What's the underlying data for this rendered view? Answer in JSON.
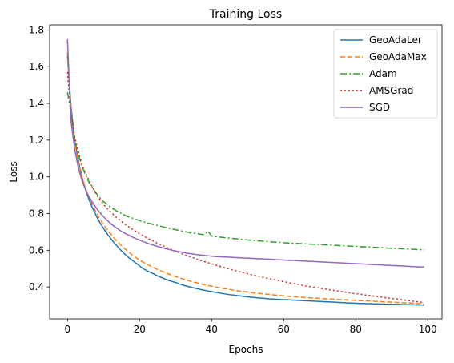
{
  "chart_data": {
    "type": "line",
    "title": "Training Loss",
    "xlabel": "Epochs",
    "ylabel": "Loss",
    "xlim": [
      -4.95,
      103.95
    ],
    "ylim": [
      0.226,
      1.828
    ],
    "xticks": [
      0,
      20,
      40,
      60,
      80,
      100
    ],
    "yticks": [
      0.4,
      0.6,
      0.8,
      1.0,
      1.2,
      1.4,
      1.6,
      1.8
    ],
    "ytick_labels": [
      "0.4",
      "0.6",
      "0.8",
      "1.0",
      "1.2",
      "1.4",
      "1.6",
      "1.8"
    ],
    "legend_position": "top-right",
    "grid": false,
    "x": [
      0,
      1,
      2,
      3,
      4,
      5,
      6,
      7,
      8,
      9,
      10,
      11,
      12,
      13,
      14,
      15,
      16,
      17,
      18,
      19,
      20,
      21,
      22,
      23,
      24,
      25,
      26,
      27,
      28,
      29,
      30,
      31,
      32,
      33,
      34,
      35,
      36,
      37,
      38,
      39,
      40,
      41,
      42,
      43,
      44,
      45,
      46,
      47,
      48,
      49,
      50,
      51,
      52,
      53,
      54,
      55,
      56,
      57,
      58,
      59,
      60,
      61,
      62,
      63,
      64,
      65,
      66,
      67,
      68,
      69,
      70,
      71,
      72,
      73,
      74,
      75,
      76,
      77,
      78,
      79,
      80,
      81,
      82,
      83,
      84,
      85,
      86,
      87,
      88,
      89,
      90,
      91,
      92,
      93,
      94,
      95,
      96,
      97,
      98,
      99
    ],
    "series": [
      {
        "name": "GeoAdaLer",
        "color": "#1f77b4",
        "dash": "",
        "values": [
          1.66,
          1.38,
          1.2,
          1.09,
          1.0,
          0.93,
          0.875,
          0.828,
          0.787,
          0.75,
          0.72,
          0.69,
          0.664,
          0.64,
          0.617,
          0.596,
          0.577,
          0.56,
          0.545,
          0.53,
          0.515,
          0.5,
          0.489,
          0.48,
          0.47,
          0.46,
          0.452,
          0.444,
          0.436,
          0.43,
          0.424,
          0.417,
          0.41,
          0.405,
          0.4,
          0.395,
          0.39,
          0.386,
          0.382,
          0.378,
          0.375,
          0.371,
          0.368,
          0.364,
          0.361,
          0.358,
          0.356,
          0.353,
          0.351,
          0.348,
          0.346,
          0.344,
          0.342,
          0.34,
          0.339,
          0.337,
          0.335,
          0.334,
          0.333,
          0.332,
          0.331,
          0.33,
          0.329,
          0.328,
          0.327,
          0.326,
          0.325,
          0.324,
          0.323,
          0.322,
          0.321,
          0.32,
          0.319,
          0.318,
          0.317,
          0.316,
          0.315,
          0.314,
          0.313,
          0.312,
          0.311,
          0.31,
          0.31,
          0.309,
          0.309,
          0.308,
          0.308,
          0.307,
          0.307,
          0.306,
          0.306,
          0.305,
          0.305,
          0.304,
          0.304,
          0.303,
          0.303,
          0.302,
          0.302,
          0.301
        ]
      },
      {
        "name": "GeoAdaMax",
        "color": "#ff7f0e",
        "dash": "6,3",
        "values": [
          1.68,
          1.36,
          1.19,
          1.08,
          1.0,
          0.94,
          0.89,
          0.845,
          0.805,
          0.77,
          0.74,
          0.712,
          0.688,
          0.665,
          0.645,
          0.625,
          0.607,
          0.59,
          0.574,
          0.56,
          0.547,
          0.535,
          0.524,
          0.514,
          0.504,
          0.495,
          0.487,
          0.479,
          0.471,
          0.464,
          0.457,
          0.45,
          0.444,
          0.438,
          0.432,
          0.427,
          0.422,
          0.417,
          0.412,
          0.408,
          0.404,
          0.4,
          0.396,
          0.393,
          0.39,
          0.386,
          0.383,
          0.38,
          0.377,
          0.375,
          0.372,
          0.37,
          0.367,
          0.365,
          0.363,
          0.361,
          0.359,
          0.357,
          0.355,
          0.353,
          0.352,
          0.35,
          0.348,
          0.347,
          0.345,
          0.344,
          0.343,
          0.341,
          0.34,
          0.339,
          0.338,
          0.336,
          0.335,
          0.334,
          0.333,
          0.332,
          0.331,
          0.33,
          0.329,
          0.328,
          0.327,
          0.326,
          0.325,
          0.324,
          0.323,
          0.322,
          0.321,
          0.32,
          0.319,
          0.318,
          0.317,
          0.316,
          0.315,
          0.314,
          0.313,
          0.312,
          0.311,
          0.31,
          0.309,
          0.308
        ]
      },
      {
        "name": "Adam",
        "color": "#2ca02c",
        "dash": "8,3,2,3",
        "values": [
          1.46,
          1.35,
          1.2,
          1.12,
          1.06,
          1.01,
          0.97,
          0.94,
          0.91,
          0.885,
          0.865,
          0.85,
          0.835,
          0.822,
          0.81,
          0.8,
          0.79,
          0.782,
          0.775,
          0.768,
          0.762,
          0.756,
          0.75,
          0.745,
          0.74,
          0.735,
          0.73,
          0.725,
          0.72,
          0.716,
          0.712,
          0.708,
          0.704,
          0.7,
          0.696,
          0.693,
          0.69,
          0.687,
          0.684,
          0.704,
          0.678,
          0.675,
          0.672,
          0.67,
          0.668,
          0.666,
          0.664,
          0.662,
          0.66,
          0.658,
          0.656,
          0.655,
          0.653,
          0.651,
          0.65,
          0.648,
          0.647,
          0.645,
          0.644,
          0.643,
          0.641,
          0.64,
          0.639,
          0.638,
          0.637,
          0.636,
          0.635,
          0.634,
          0.633,
          0.632,
          0.631,
          0.63,
          0.629,
          0.628,
          0.627,
          0.626,
          0.625,
          0.624,
          0.623,
          0.622,
          0.621,
          0.62,
          0.619,
          0.618,
          0.617,
          0.616,
          0.615,
          0.614,
          0.613,
          0.612,
          0.611,
          0.61,
          0.609,
          0.608,
          0.607,
          0.606,
          0.605,
          0.604,
          0.603,
          0.602
        ]
      },
      {
        "name": "AMSGrad",
        "color": "#d62728",
        "dash": "2,3",
        "values": [
          1.57,
          1.34,
          1.22,
          1.14,
          1.07,
          1.02,
          0.98,
          0.94,
          0.905,
          0.875,
          0.85,
          0.828,
          0.808,
          0.79,
          0.772,
          0.757,
          0.742,
          0.728,
          0.715,
          0.702,
          0.69,
          0.679,
          0.668,
          0.658,
          0.648,
          0.638,
          0.629,
          0.62,
          0.611,
          0.603,
          0.595,
          0.587,
          0.579,
          0.572,
          0.565,
          0.558,
          0.551,
          0.544,
          0.538,
          0.532,
          0.526,
          0.52,
          0.514,
          0.508,
          0.503,
          0.497,
          0.492,
          0.487,
          0.482,
          0.477,
          0.472,
          0.467,
          0.463,
          0.458,
          0.454,
          0.449,
          0.445,
          0.441,
          0.437,
          0.433,
          0.429,
          0.425,
          0.421,
          0.417,
          0.414,
          0.41,
          0.406,
          0.403,
          0.4,
          0.396,
          0.393,
          0.39,
          0.387,
          0.384,
          0.381,
          0.378,
          0.375,
          0.372,
          0.369,
          0.366,
          0.363,
          0.361,
          0.358,
          0.355,
          0.353,
          0.35,
          0.347,
          0.345,
          0.342,
          0.34,
          0.337,
          0.335,
          0.332,
          0.33,
          0.327,
          0.325,
          0.322,
          0.32,
          0.317,
          0.315
        ]
      },
      {
        "name": "SGD",
        "color": "#9467bd",
        "dash": "",
        "values": [
          1.75,
          1.3,
          1.15,
          1.05,
          0.98,
          0.93,
          0.89,
          0.86,
          0.83,
          0.805,
          0.783,
          0.763,
          0.745,
          0.73,
          0.716,
          0.703,
          0.692,
          0.682,
          0.672,
          0.663,
          0.655,
          0.647,
          0.64,
          0.633,
          0.627,
          0.621,
          0.615,
          0.61,
          0.605,
          0.6,
          0.596,
          0.592,
          0.588,
          0.585,
          0.582,
          0.579,
          0.576,
          0.574,
          0.572,
          0.57,
          0.568,
          0.566,
          0.565,
          0.564,
          0.563,
          0.562,
          0.561,
          0.56,
          0.559,
          0.558,
          0.557,
          0.556,
          0.555,
          0.554,
          0.553,
          0.552,
          0.551,
          0.55,
          0.549,
          0.548,
          0.547,
          0.546,
          0.545,
          0.544,
          0.543,
          0.542,
          0.541,
          0.54,
          0.539,
          0.538,
          0.537,
          0.536,
          0.535,
          0.534,
          0.533,
          0.532,
          0.531,
          0.53,
          0.529,
          0.528,
          0.527,
          0.526,
          0.525,
          0.524,
          0.523,
          0.522,
          0.521,
          0.52,
          0.519,
          0.518,
          0.517,
          0.516,
          0.515,
          0.514,
          0.513,
          0.512,
          0.511,
          0.51,
          0.509,
          0.508
        ]
      }
    ]
  }
}
